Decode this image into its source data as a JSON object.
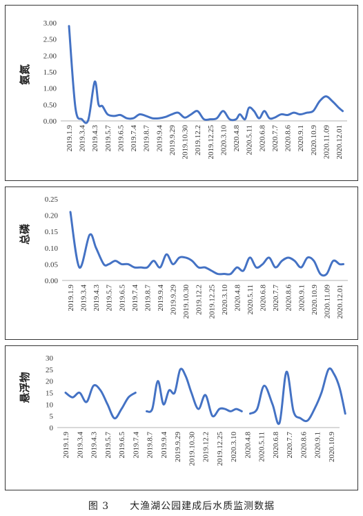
{
  "caption": "图 3　　大渔湖公园建成后水质监测数据",
  "line_color": "#4472c4",
  "chart_data": [
    {
      "type": "line",
      "ylabel": "氨氮",
      "ylim": [
        0,
        3.0
      ],
      "yticks": [
        "0.00",
        "0.50",
        "1.00",
        "1.50",
        "2.00",
        "2.50",
        "3.00"
      ],
      "xticks": [
        "2019.1.9",
        "2019.3.4",
        "2019.4.3",
        "2019.5.7",
        "2019.6.5",
        "2019.7.4",
        "2019.8.7",
        "2019.9.4",
        "2019.9.29",
        "2019.10.30",
        "2019.12.2",
        "2019.12.25",
        "2020.3.10",
        "2020.4.8",
        "2020.5.11",
        "2020.6.8",
        "2020.7.7",
        "2020.8.6",
        "2020.9.1",
        "2020.10.9",
        "2020.11.09",
        "2020.12.01"
      ],
      "series": [
        {
          "x": [
            0,
            0.5,
            1,
            1.5,
            2,
            2.3,
            2.6,
            3,
            3.5,
            4,
            4.5,
            5,
            5.5,
            6,
            6.5,
            7,
            7.5,
            8,
            8.5,
            9,
            9.5,
            10,
            10.5,
            11,
            11.5,
            12,
            12.5,
            13,
            13.3,
            13.7,
            14,
            14.4,
            14.8,
            15.2,
            15.6,
            16,
            16.5,
            17,
            17.5,
            18,
            18.5,
            19,
            19.5,
            20,
            20.5,
            21,
            21.3
          ],
          "values": [
            2.9,
            0.4,
            0.05,
            0.03,
            1.2,
            0.5,
            0.45,
            0.2,
            0.15,
            0.18,
            0.08,
            0.08,
            0.2,
            0.15,
            0.08,
            0.08,
            0.12,
            0.2,
            0.25,
            0.1,
            0.2,
            0.3,
            0.05,
            0.05,
            0.08,
            0.3,
            0.05,
            0.05,
            0.2,
            0.05,
            0.4,
            0.3,
            0.08,
            0.3,
            0.08,
            0.1,
            0.2,
            0.18,
            0.25,
            0.2,
            0.25,
            0.3,
            0.6,
            0.75,
            0.6,
            0.4,
            0.3
          ]
        }
      ]
    },
    {
      "type": "line",
      "ylabel": "总磷",
      "ylim": [
        0,
        0.25
      ],
      "yticks": [
        "0.00",
        "0.05",
        "0.10",
        "0.15",
        "0.20",
        "0.25"
      ],
      "xticks": [
        "2019.1.9",
        "2019.3.4",
        "2019.4.3",
        "2019.5.7",
        "2019.6.5",
        "2019.7.4",
        "2019.8.7",
        "2019.9.4",
        "2019.9.29",
        "2019.10.30",
        "2019.12.2",
        "2019.12.25",
        "2020.3.10",
        "2020.4.8",
        "2020.5.11",
        "2020.6.8",
        "2020.7.7",
        "2020.8.6",
        "2020.9.1",
        "2020.10.9",
        "2020.11.09",
        "2020.12.01"
      ],
      "series": [
        {
          "x": [
            0,
            0.7,
            1.5,
            2,
            2.6,
            3,
            3.5,
            4,
            4.5,
            5,
            5.5,
            6,
            6.5,
            7,
            7.5,
            8,
            8.5,
            9,
            9.5,
            10,
            10.5,
            11,
            11.5,
            12,
            12.5,
            13,
            13.5,
            14,
            14.5,
            15,
            15.5,
            16,
            16.5,
            17,
            17.5,
            18,
            18.5,
            19,
            19.5,
            20,
            20.5,
            21,
            21.3
          ],
          "values": [
            0.21,
            0.04,
            0.14,
            0.1,
            0.05,
            0.05,
            0.06,
            0.05,
            0.05,
            0.04,
            0.04,
            0.04,
            0.06,
            0.04,
            0.08,
            0.05,
            0.07,
            0.07,
            0.06,
            0.04,
            0.04,
            0.03,
            0.02,
            0.02,
            0.02,
            0.04,
            0.03,
            0.07,
            0.04,
            0.05,
            0.07,
            0.04,
            0.06,
            0.07,
            0.06,
            0.04,
            0.07,
            0.06,
            0.02,
            0.02,
            0.06,
            0.05,
            0.05
          ]
        }
      ]
    },
    {
      "type": "line",
      "ylabel": "悬浮物",
      "ylim": [
        0,
        30
      ],
      "yticks": [
        "0",
        "5",
        "10",
        "15",
        "20",
        "25",
        "30"
      ],
      "xticks": [
        "2019.1.9",
        "2019.3.4",
        "2019.4.3",
        "2019.5.7",
        "2019.6.5",
        "2019.7.4",
        "2019.8.7",
        "2019.9.4",
        "2019.9.29",
        "2019.10.30",
        "2019.12.2",
        "2019.12.25",
        "2020.3.10",
        "2020.4.8",
        "2020.5.11",
        "2020.6.8",
        "2020.7.7",
        "2020.8.6",
        "2020.9.1",
        "2020.10.9"
      ],
      "series": [
        {
          "x": [
            0,
            0.5,
            1,
            1.5,
            2,
            2.5,
            3,
            3.5,
            4,
            4.5,
            5
          ],
          "values": [
            15,
            13,
            15,
            11,
            18,
            16,
            10,
            4,
            8,
            13,
            15
          ]
        },
        {
          "x": [
            5.8,
            6.2,
            6.6,
            7,
            7.4,
            7.8,
            8.2,
            8.6,
            9,
            9.5,
            10,
            10.5,
            11,
            11.4,
            11.8,
            12.2,
            12.6
          ],
          "values": [
            7,
            8,
            20,
            10,
            16,
            15,
            25,
            22,
            15,
            8,
            14,
            5,
            8,
            8,
            7,
            8,
            7
          ]
        },
        {
          "x": [
            13.2,
            13.7,
            14.2,
            14.8,
            15.3,
            15.8,
            16.3,
            16.8,
            17.3,
            17.8,
            18.3,
            18.8,
            19.2,
            19.6,
            20
          ],
          "values": [
            6,
            8,
            18,
            10,
            2,
            24,
            7,
            4,
            3,
            8,
            15,
            25,
            23,
            17,
            6
          ]
        }
      ]
    }
  ]
}
